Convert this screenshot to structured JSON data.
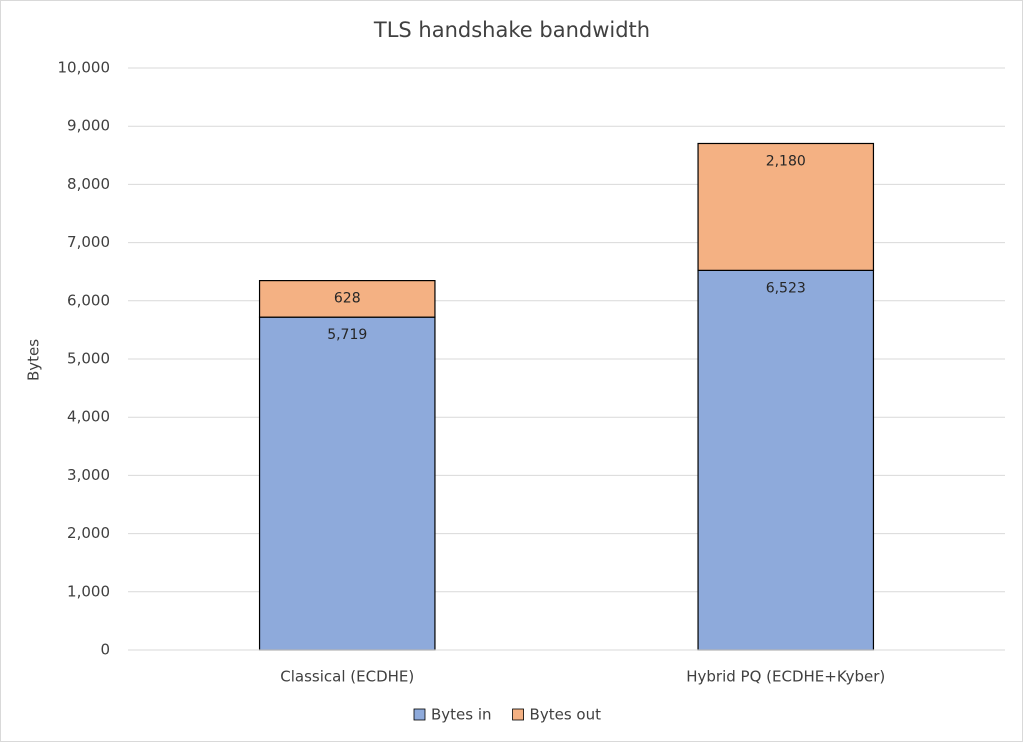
{
  "chart_data": {
    "type": "stacked_bar",
    "title": "TLS handshake bandwidth",
    "y_label": "Bytes",
    "categories": [
      "Classical (ECDHE)",
      "Hybrid PQ (ECDHE+Kyber)"
    ],
    "series": [
      {
        "name": "Bytes in",
        "color": "#8eaadb",
        "values": [
          5719,
          6523
        ],
        "value_labels": [
          "5,719",
          "6,523"
        ]
      },
      {
        "name": "Bytes out",
        "color": "#f4b183",
        "values": [
          628,
          2180
        ],
        "value_labels": [
          "628",
          "2,180"
        ]
      }
    ],
    "ylim": [
      0,
      10000
    ],
    "yticks": [
      0,
      {
        "value": 1000,
        "label": "1,000"
      },
      {
        "value": 2000,
        "label": "2,000"
      },
      {
        "value": 3000,
        "label": "3,000"
      },
      {
        "value": 4000,
        "label": "4,000"
      },
      {
        "value": 5000,
        "label": "5,000"
      },
      {
        "value": 6000,
        "label": "6,000"
      },
      {
        "value": 7000,
        "label": "7,000"
      },
      {
        "value": 8000,
        "label": "8,000"
      },
      {
        "value": 9000,
        "label": "9,000"
      },
      {
        "value": 10000,
        "label": "10,000"
      }
    ],
    "grid": true,
    "legend": "bottom"
  }
}
